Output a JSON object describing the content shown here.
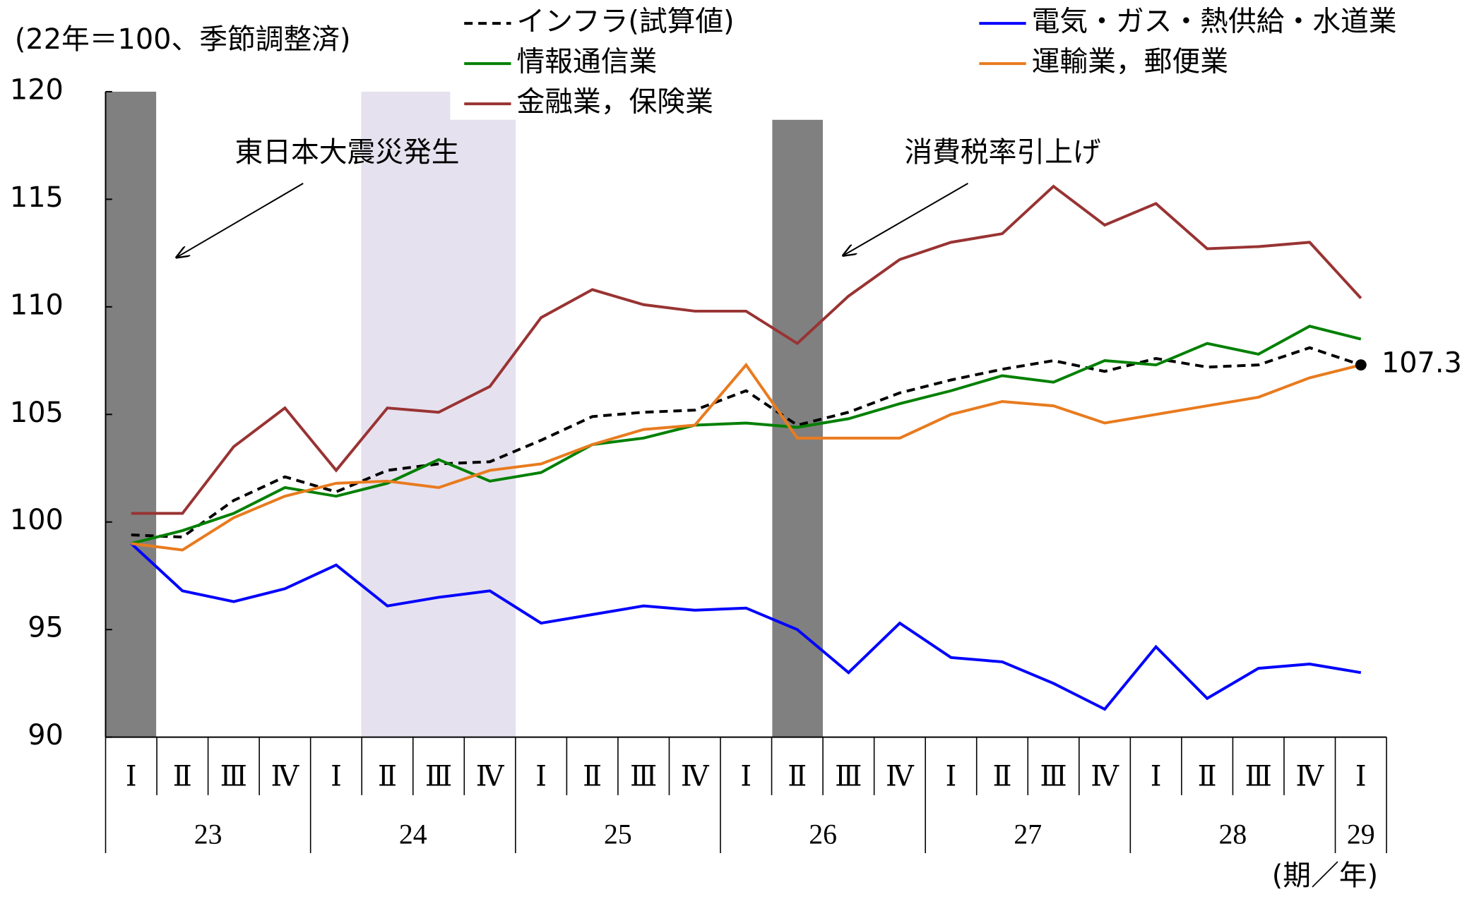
{
  "chart_data": {
    "type": "line",
    "subtitle": "(22年＝100、季節調整済)",
    "x_unit": "(期／年)",
    "annotations": [
      "東日本大震災発生",
      "消費税率引上げ"
    ],
    "categories": [
      "Ⅰ",
      "Ⅱ",
      "Ⅲ",
      "Ⅳ",
      "Ⅰ",
      "Ⅱ",
      "Ⅲ",
      "Ⅳ",
      "Ⅰ",
      "Ⅱ",
      "Ⅲ",
      "Ⅳ",
      "Ⅰ",
      "Ⅱ",
      "Ⅲ",
      "Ⅳ",
      "Ⅰ",
      "Ⅱ",
      "Ⅲ",
      "Ⅳ",
      "Ⅰ",
      "Ⅱ",
      "Ⅲ",
      "Ⅳ",
      "Ⅰ"
    ],
    "x_groups": [
      "23",
      "24",
      "25",
      "26",
      "27",
      "28",
      "29"
    ],
    "ylim": [
      90,
      120
    ],
    "yticks": [
      90,
      95,
      100,
      105,
      110,
      115,
      120
    ],
    "series": [
      {
        "name": "インフラ(試算値)",
        "color": "#000000",
        "style": "dashed",
        "values": [
          99.4,
          99.3,
          101.0,
          102.1,
          101.4,
          102.4,
          102.7,
          102.8,
          103.8,
          104.9,
          105.1,
          105.2,
          106.1,
          104.5,
          105.1,
          106.0,
          106.6,
          107.1,
          107.5,
          107.0,
          107.6,
          107.2,
          107.3,
          108.1,
          107.3
        ]
      },
      {
        "name": "電気・ガス・熱供給・水道業",
        "color": "#0000ff",
        "style": "solid",
        "values": [
          99.0,
          96.8,
          96.3,
          96.9,
          98.0,
          96.1,
          96.5,
          96.8,
          95.3,
          95.7,
          96.1,
          95.9,
          96.0,
          95.0,
          93.0,
          95.3,
          93.7,
          93.5,
          92.5,
          91.3,
          94.2,
          91.8,
          93.2,
          93.4,
          93.0
        ]
      },
      {
        "name": "情報通信業",
        "color": "#008000",
        "style": "solid",
        "values": [
          99.0,
          99.6,
          100.4,
          101.6,
          101.2,
          101.8,
          102.9,
          101.9,
          102.3,
          103.6,
          103.9,
          104.5,
          104.6,
          104.4,
          104.8,
          105.5,
          106.1,
          106.8,
          106.5,
          107.5,
          107.3,
          108.3,
          107.8,
          109.1,
          108.5
        ]
      },
      {
        "name": "運輸業，郵便業",
        "color": "#e87b1e",
        "style": "solid",
        "values": [
          99.0,
          98.7,
          100.2,
          101.2,
          101.8,
          101.9,
          101.6,
          102.4,
          102.7,
          103.6,
          104.3,
          104.5,
          107.3,
          103.9,
          103.9,
          103.9,
          105.0,
          105.6,
          105.4,
          104.6,
          105.0,
          105.4,
          105.8,
          106.7,
          107.3
        ]
      },
      {
        "name": "金融業，保険業",
        "color": "#993333",
        "style": "solid",
        "values": [
          100.4,
          100.4,
          103.5,
          105.3,
          102.4,
          105.3,
          105.1,
          106.3,
          109.5,
          110.8,
          110.1,
          109.8,
          109.8,
          108.3,
          110.5,
          112.2,
          113.0,
          113.4,
          115.6,
          113.8,
          114.8,
          112.7,
          112.8,
          113.0,
          110.4
        ]
      }
    ]
  }
}
